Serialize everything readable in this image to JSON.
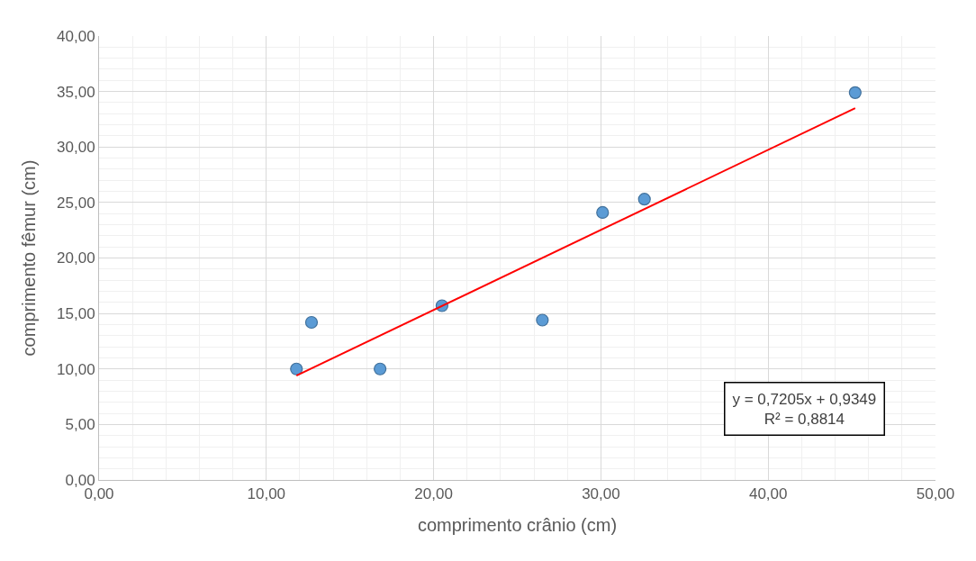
{
  "chart_data": {
    "type": "scatter",
    "xlabel": "comprimento crânio (cm)",
    "ylabel": "comprimento fêmur (cm)",
    "xlim": [
      0,
      50
    ],
    "ylim": [
      0,
      40
    ],
    "xticks": [
      {
        "value": 0,
        "label": "0,00"
      },
      {
        "value": 10,
        "label": "10,00"
      },
      {
        "value": 20,
        "label": "20,00"
      },
      {
        "value": 30,
        "label": "30,00"
      },
      {
        "value": 40,
        "label": "40,00"
      },
      {
        "value": 50,
        "label": "50,00"
      }
    ],
    "yticks": [
      {
        "value": 0,
        "label": "0,00"
      },
      {
        "value": 5,
        "label": "5,00"
      },
      {
        "value": 10,
        "label": "10,00"
      },
      {
        "value": 15,
        "label": "15,00"
      },
      {
        "value": 20,
        "label": "20,00"
      },
      {
        "value": 25,
        "label": "25,00"
      },
      {
        "value": 30,
        "label": "30,00"
      },
      {
        "value": 35,
        "label": "35,00"
      },
      {
        "value": 40,
        "label": "40,00"
      }
    ],
    "grid": true,
    "series": [
      {
        "marker": "circle",
        "color": "#5b9bd5",
        "x": [
          11.8,
          12.7,
          16.8,
          20.5,
          26.5,
          30.1,
          32.6,
          45.2
        ],
        "values": [
          10.0,
          14.2,
          10.0,
          15.7,
          14.4,
          24.1,
          25.3,
          34.9
        ]
      },
      {
        "type": "line",
        "marker": "none",
        "color": "#ff0000",
        "x": [
          11.8,
          45.2
        ],
        "values": [
          9.4,
          33.5
        ]
      }
    ],
    "annotations": [
      "y = 0,7205x + 0,9349\nR² = 0,8814"
    ]
  }
}
